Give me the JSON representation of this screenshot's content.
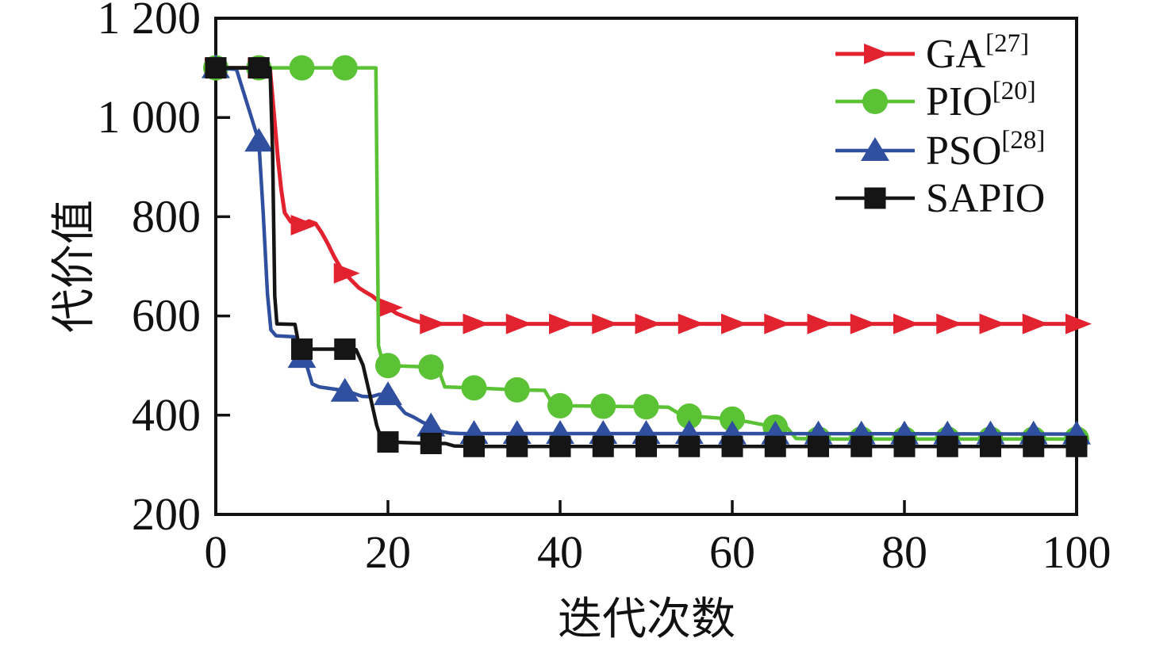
{
  "figure": {
    "background": "#ffffff"
  },
  "axes": {
    "xlabel": "迭代次数",
    "ylabel": "代价值",
    "x_tick_labels": [
      "0",
      "20",
      "40",
      "60",
      "80",
      "100"
    ],
    "y_tick_labels": [
      "200",
      "400",
      "600",
      "800",
      "1 000",
      "1 200"
    ]
  },
  "chart_data": {
    "type": "line",
    "title": "",
    "xlabel": "迭代次数",
    "ylabel": "代价值",
    "xlim": [
      0,
      100
    ],
    "ylim": [
      200,
      1200
    ],
    "x_ticks": [
      0,
      20,
      40,
      60,
      80,
      100
    ],
    "y_ticks": [
      200,
      400,
      600,
      800,
      1000,
      1200
    ],
    "grid": false,
    "legend_position": "top-right",
    "colors": {
      "GA": "#e32230",
      "PIO": "#5bc236",
      "PSO": "#30509f",
      "SAPIO": "#151515"
    },
    "series": [
      {
        "name": "GA",
        "ref_sup": "[27]",
        "legend_label": "GA",
        "color": "#e32230",
        "marker": "triangle-right",
        "line": [
          [
            0,
            1100
          ],
          [
            5,
            1100
          ],
          [
            6.3,
            1098
          ],
          [
            6.8,
            1000
          ],
          [
            7.2,
            920
          ],
          [
            7.6,
            855
          ],
          [
            8,
            808
          ],
          [
            8.7,
            790
          ],
          [
            9.4,
            784
          ],
          [
            10,
            783
          ],
          [
            10.8,
            791
          ],
          [
            11.6,
            786
          ],
          [
            12.3,
            768
          ],
          [
            13,
            746
          ],
          [
            13.8,
            718
          ],
          [
            14.5,
            697
          ],
          [
            15,
            686
          ],
          [
            15.8,
            671
          ],
          [
            16.6,
            657
          ],
          [
            17.4,
            648
          ],
          [
            18.2,
            640
          ],
          [
            19,
            628
          ],
          [
            20,
            617
          ],
          [
            21,
            605
          ],
          [
            22,
            598
          ],
          [
            23,
            591
          ],
          [
            24,
            586
          ],
          [
            25,
            584
          ],
          [
            100,
            584
          ]
        ],
        "markers": [
          [
            0,
            1100
          ],
          [
            5,
            1100
          ],
          [
            10,
            783
          ],
          [
            15,
            686
          ],
          [
            20,
            617
          ],
          [
            25,
            584
          ],
          [
            30,
            584
          ],
          [
            35,
            584
          ],
          [
            40,
            584
          ],
          [
            45,
            584
          ],
          [
            50,
            584
          ],
          [
            55,
            584
          ],
          [
            60,
            584
          ],
          [
            65,
            584
          ],
          [
            70,
            584
          ],
          [
            75,
            584
          ],
          [
            80,
            584
          ],
          [
            85,
            584
          ],
          [
            90,
            584
          ],
          [
            95,
            584
          ],
          [
            100,
            584
          ]
        ]
      },
      {
        "name": "PIO",
        "ref_sup": "[20]",
        "legend_label": "PIO",
        "color": "#5bc236",
        "marker": "circle",
        "line": [
          [
            0,
            1100
          ],
          [
            18.6,
            1100
          ],
          [
            18.9,
            540
          ],
          [
            19.4,
            505
          ],
          [
            20,
            500
          ],
          [
            25,
            497
          ],
          [
            25.8,
            496
          ],
          [
            26.6,
            457
          ],
          [
            30,
            455
          ],
          [
            35,
            451
          ],
          [
            38.2,
            450
          ],
          [
            39.2,
            420
          ],
          [
            40,
            419
          ],
          [
            45,
            418
          ],
          [
            50,
            417
          ],
          [
            52.6,
            416
          ],
          [
            54.2,
            399
          ],
          [
            55,
            398
          ],
          [
            57,
            396
          ],
          [
            60,
            392
          ],
          [
            62,
            386
          ],
          [
            65,
            376
          ],
          [
            66.4,
            374
          ],
          [
            67.4,
            353
          ],
          [
            70,
            352
          ],
          [
            100,
            352
          ]
        ],
        "markers": [
          [
            0,
            1100
          ],
          [
            5,
            1100
          ],
          [
            10,
            1100
          ],
          [
            15,
            1100
          ],
          [
            20,
            500
          ],
          [
            25,
            497
          ],
          [
            30,
            455
          ],
          [
            35,
            451
          ],
          [
            40,
            419
          ],
          [
            45,
            418
          ],
          [
            50,
            417
          ],
          [
            55,
            398
          ],
          [
            60,
            392
          ],
          [
            65,
            376
          ],
          [
            70,
            352
          ],
          [
            75,
            352
          ],
          [
            80,
            352
          ],
          [
            85,
            352
          ],
          [
            90,
            352
          ],
          [
            95,
            352
          ],
          [
            100,
            352
          ]
        ]
      },
      {
        "name": "PSO",
        "ref_sup": "[28]",
        "legend_label": "PSO",
        "color": "#30509f",
        "marker": "triangle-up",
        "line": [
          [
            0,
            1100
          ],
          [
            2.4,
            1097
          ],
          [
            5,
            952
          ],
          [
            5.5,
            810
          ],
          [
            6,
            645
          ],
          [
            6.4,
            572
          ],
          [
            7,
            560
          ],
          [
            9.1,
            558
          ],
          [
            9.6,
            542
          ],
          [
            10,
            516
          ],
          [
            10.6,
            498
          ],
          [
            11.2,
            463
          ],
          [
            12,
            457
          ],
          [
            14,
            452
          ],
          [
            15,
            448
          ],
          [
            16,
            444
          ],
          [
            17,
            438
          ],
          [
            18,
            437
          ],
          [
            19,
            442
          ],
          [
            20,
            441
          ],
          [
            21,
            424
          ],
          [
            22,
            404
          ],
          [
            23,
            396
          ],
          [
            24,
            386
          ],
          [
            25,
            378
          ],
          [
            26,
            368
          ],
          [
            27.2,
            364
          ],
          [
            28.5,
            363
          ],
          [
            60,
            363
          ],
          [
            100,
            362
          ]
        ],
        "markers": [
          [
            0,
            1100
          ],
          [
            5,
            952
          ],
          [
            10,
            516
          ],
          [
            15,
            448
          ],
          [
            20,
            441
          ],
          [
            25,
            378
          ],
          [
            30,
            363
          ],
          [
            35,
            363
          ],
          [
            40,
            363
          ],
          [
            45,
            363
          ],
          [
            50,
            363
          ],
          [
            55,
            363
          ],
          [
            60,
            362
          ],
          [
            65,
            362
          ],
          [
            70,
            362
          ],
          [
            75,
            362
          ],
          [
            80,
            362
          ],
          [
            85,
            362
          ],
          [
            90,
            362
          ],
          [
            95,
            362
          ],
          [
            100,
            362
          ]
        ]
      },
      {
        "name": "SAPIO",
        "ref_sup": "",
        "legend_label": "SAPIO",
        "color": "#151515",
        "marker": "square",
        "line": [
          [
            0,
            1100
          ],
          [
            6.3,
            1100
          ],
          [
            6.6,
            930
          ],
          [
            6.85,
            640
          ],
          [
            7.1,
            584
          ],
          [
            9.2,
            583
          ],
          [
            9.7,
            537
          ],
          [
            10,
            533
          ],
          [
            15,
            533
          ],
          [
            16.3,
            532
          ],
          [
            17.1,
            501
          ],
          [
            17.9,
            441
          ],
          [
            18.7,
            379
          ],
          [
            19.3,
            349
          ],
          [
            20,
            346
          ],
          [
            25,
            343
          ],
          [
            26.7,
            343
          ],
          [
            27.7,
            338
          ],
          [
            30,
            337
          ],
          [
            100,
            337
          ]
        ],
        "markers": [
          [
            0,
            1100
          ],
          [
            5,
            1100
          ],
          [
            10,
            533
          ],
          [
            15,
            533
          ],
          [
            20,
            346
          ],
          [
            25,
            343
          ],
          [
            30,
            337
          ],
          [
            35,
            337
          ],
          [
            40,
            337
          ],
          [
            45,
            337
          ],
          [
            50,
            337
          ],
          [
            55,
            337
          ],
          [
            60,
            337
          ],
          [
            65,
            337
          ],
          [
            70,
            337
          ],
          [
            75,
            337
          ],
          [
            80,
            337
          ],
          [
            85,
            337
          ],
          [
            90,
            337
          ],
          [
            95,
            337
          ],
          [
            100,
            337
          ]
        ]
      }
    ]
  }
}
